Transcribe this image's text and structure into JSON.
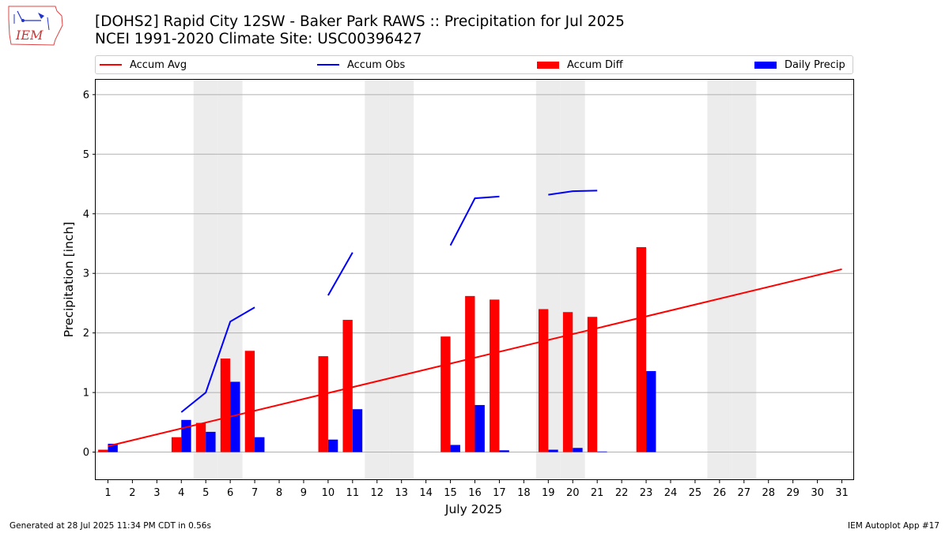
{
  "header": {
    "title_line1": "[DOHS2] Rapid City 12SW - Baker Park RAWS :: Precipitation for Jul 2025",
    "title_line2": "NCEI 1991-2020 Climate Site: USC00396427",
    "logo_text": "IEM"
  },
  "legend": [
    {
      "label": "Accum Avg",
      "kind": "line",
      "color": "#ff0000"
    },
    {
      "label": "Accum Obs",
      "kind": "line",
      "color": "#0000ff"
    },
    {
      "label": "Accum Diff",
      "kind": "box",
      "color": "#ff0000"
    },
    {
      "label": "Daily Precip",
      "kind": "box",
      "color": "#0000ff"
    }
  ],
  "footer": {
    "left": "Generated at 28 Jul 2025 11:34 PM CDT in 0.56s",
    "right": "IEM Autoplot App #17"
  },
  "chart_data": {
    "type": "bar",
    "xlabel": "July 2025",
    "ylabel": "Precipitation [inch]",
    "xlim": [
      0.5,
      31.5
    ],
    "ylim": [
      -0.47,
      6.25
    ],
    "yticks": [
      0,
      1,
      2,
      3,
      4,
      5,
      6
    ],
    "categories": [
      "1",
      "2",
      "3",
      "4",
      "5",
      "6",
      "7",
      "8",
      "9",
      "10",
      "11",
      "12",
      "13",
      "14",
      "15",
      "16",
      "17",
      "18",
      "19",
      "20",
      "21",
      "22",
      "23",
      "24",
      "25",
      "26",
      "27",
      "28",
      "29",
      "30",
      "31"
    ],
    "weekend_days": [
      5,
      6,
      12,
      13,
      19,
      20,
      26,
      27
    ],
    "grid": "horizontal",
    "accum_avg": {
      "x": [
        1,
        31
      ],
      "y": [
        0.1,
        3.07
      ]
    },
    "accum_obs_segments": [
      {
        "x": [
          4,
          5,
          6,
          7
        ],
        "y": [
          0.67,
          1.0,
          2.19,
          2.43
        ]
      },
      {
        "x": [
          10,
          11
        ],
        "y": [
          2.63,
          3.35
        ]
      },
      {
        "x": [
          15,
          16,
          17
        ],
        "y": [
          3.47,
          4.26,
          4.29
        ]
      },
      {
        "x": [
          19,
          20,
          21
        ],
        "y": [
          4.32,
          4.38,
          4.39
        ]
      }
    ],
    "accum_diff": [
      0.04,
      null,
      null,
      0.25,
      0.49,
      1.57,
      1.7,
      null,
      null,
      1.61,
      2.22,
      null,
      null,
      null,
      1.94,
      2.62,
      2.56,
      null,
      2.4,
      2.35,
      2.27,
      null,
      3.44,
      null,
      null,
      null,
      null,
      null,
      null,
      null,
      null
    ],
    "daily_precip": [
      0.14,
      0,
      0,
      0.54,
      0.34,
      1.18,
      0.25,
      0,
      0,
      0.21,
      0.72,
      0,
      0,
      0,
      0.12,
      0.79,
      0.03,
      0,
      0.04,
      0.07,
      0.01,
      0,
      1.36,
      null,
      null,
      null,
      null,
      null,
      null,
      null,
      null
    ]
  }
}
